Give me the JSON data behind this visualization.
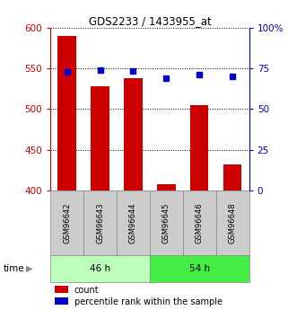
{
  "title": "GDS2233 / 1433955_at",
  "samples": [
    "GSM96642",
    "GSM96643",
    "GSM96644",
    "GSM96645",
    "GSM96646",
    "GSM96648"
  ],
  "counts": [
    590,
    528,
    538,
    407,
    505,
    432
  ],
  "percentiles": [
    73,
    74,
    73.5,
    69,
    71.5,
    70
  ],
  "groups": [
    {
      "label": "46 h",
      "indices": [
        0,
        1,
        2
      ],
      "color": "#bbffbb"
    },
    {
      "label": "54 h",
      "indices": [
        3,
        4,
        5
      ],
      "color": "#44ee44"
    }
  ],
  "ylim_left": [
    400,
    600
  ],
  "ylim_right": [
    0,
    100
  ],
  "yticks_left": [
    400,
    450,
    500,
    550,
    600
  ],
  "yticks_right": [
    0,
    25,
    50,
    75,
    100
  ],
  "bar_color": "#cc0000",
  "dot_color": "#0000cc",
  "bar_bottom": 400,
  "background_color": "#ffffff",
  "left_tick_color": "#cc0000",
  "right_tick_color": "#0000cc",
  "sample_box_color": "#cccccc",
  "sample_box_edge": "#888888"
}
